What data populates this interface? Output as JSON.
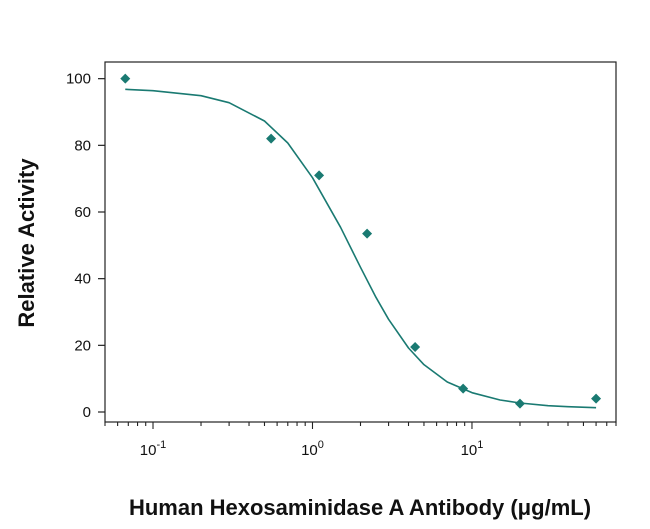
{
  "chart_data": {
    "type": "scatter",
    "title": "",
    "xlabel": "Human Hexosaminidase A Antibody (μg/mL)",
    "ylabel": "Relative Activity",
    "x_scale": "log",
    "xlim": [
      0.05,
      80
    ],
    "ylim": [
      -3,
      105
    ],
    "x_ticks": [
      {
        "value": 0.1,
        "base": "10",
        "exp": "-1"
      },
      {
        "value": 1,
        "base": "10",
        "exp": "0"
      },
      {
        "value": 10,
        "base": "10",
        "exp": "1"
      }
    ],
    "y_ticks": [
      0,
      20,
      40,
      60,
      80,
      100
    ],
    "grid": false,
    "legend": "none",
    "color": "#1a7a72",
    "series": [
      {
        "type": "scatter",
        "marker": "diamond",
        "x": [
          0.067,
          0.55,
          1.1,
          2.2,
          4.4,
          8.8,
          20,
          60
        ],
        "y": [
          100,
          82,
          71,
          53.5,
          19.5,
          7,
          2.5,
          4
        ]
      },
      {
        "type": "line",
        "model": "four-parameter logistic fit",
        "x": [
          0.067,
          0.1,
          0.2,
          0.3,
          0.5,
          0.7,
          1,
          1.5,
          2,
          2.5,
          3,
          4,
          5,
          7,
          10,
          15,
          20,
          30,
          40,
          60
        ],
        "y": [
          96.8,
          96.4,
          94.9,
          92.8,
          87.3,
          80.7,
          70.3,
          55.4,
          43.4,
          34.4,
          27.8,
          19.2,
          14.2,
          9.0,
          5.8,
          3.6,
          2.7,
          1.9,
          1.6,
          1.3
        ]
      }
    ]
  }
}
